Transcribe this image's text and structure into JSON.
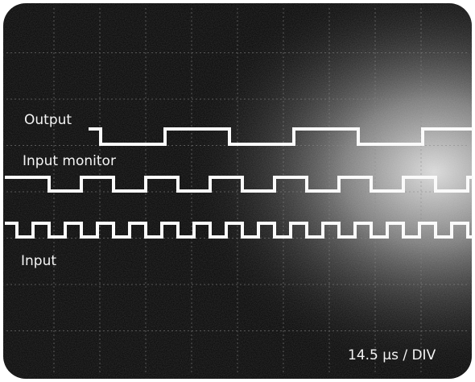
{
  "traces": {
    "output": "Output",
    "input_monitor": "Input monitor",
    "input": "Input"
  },
  "timebase": "14.5 µs / DIV"
}
